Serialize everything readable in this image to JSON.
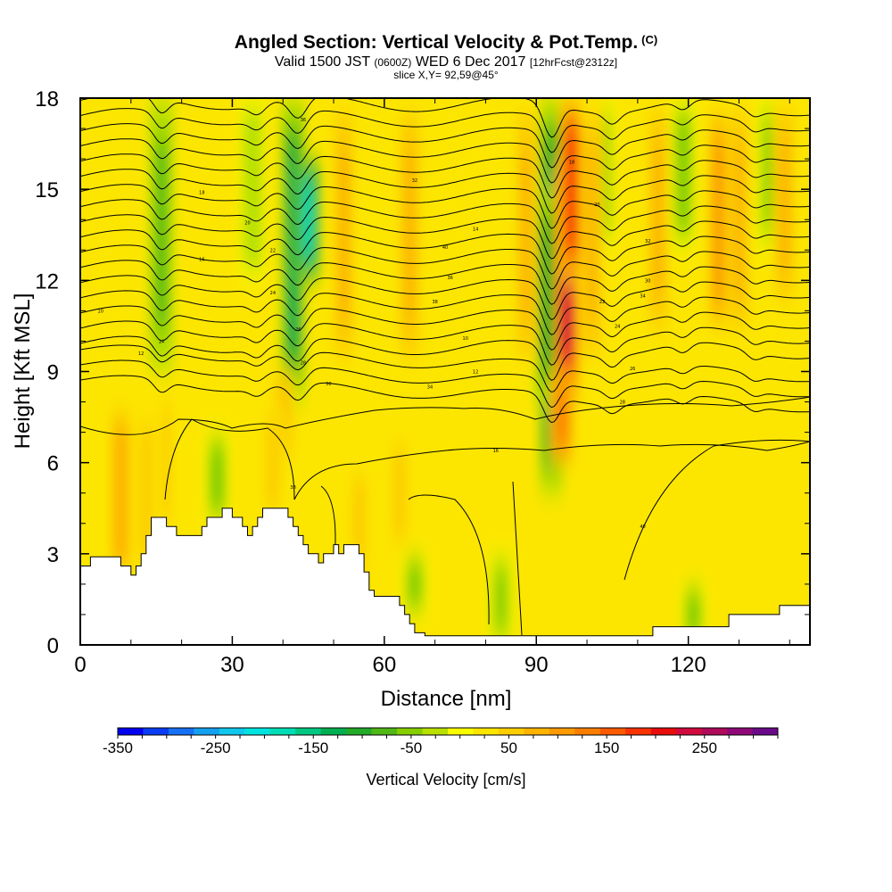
{
  "header": {
    "title": "Angled Section: Vertical Velocity & Pot.Temp.",
    "title_unit": "(C)",
    "valid_prefix": "Valid 1500 JST",
    "valid_utc": "(0600Z)",
    "valid_date": "WED 6 Dec 2017",
    "forecast": "[12hrFcst@2312z]",
    "slice": "slice X,Y= 92,59@45°"
  },
  "chart_data": {
    "type": "heatmap",
    "xlabel": "Distance [nm]",
    "ylabel": "Height [Kft MSL]",
    "xlim": [
      0,
      144
    ],
    "ylim": [
      0,
      18
    ],
    "x_ticks": [
      "0",
      "30",
      "60",
      "90",
      "120"
    ],
    "x_tick_values": [
      0,
      30,
      60,
      90,
      120
    ],
    "y_ticks": [
      "0",
      "3",
      "6",
      "9",
      "12",
      "15",
      "18"
    ],
    "y_tick_values": [
      0,
      3,
      6,
      9,
      12,
      15,
      18
    ],
    "colorbar": {
      "label": "Vertical Velocity [cm/s]",
      "tick_labels": [
        "-350",
        "-250",
        "-150",
        "-50",
        "50",
        "150",
        "250"
      ],
      "tick_values": [
        -350,
        -250,
        -150,
        -50,
        50,
        150,
        250
      ],
      "range": [
        -350,
        325
      ],
      "step": 25,
      "colors": [
        "#0000f0",
        "#0a3cf5",
        "#1670f5",
        "#14a0f0",
        "#10c8ee",
        "#00e4e0",
        "#00dcb4",
        "#00c882",
        "#00b050",
        "#22aa28",
        "#50b814",
        "#86ce00",
        "#b8e000",
        "#fcfc00",
        "#fce600",
        "#fcce00",
        "#fcb400",
        "#fc9a00",
        "#fc7e00",
        "#fc5a00",
        "#f83200",
        "#e80c0c",
        "#d00a3c",
        "#b00a5a",
        "#900878",
        "#6a0a8a"
      ]
    },
    "terrain_kft": [
      [
        0,
        2.6
      ],
      [
        2,
        2.6
      ],
      [
        2,
        2.9
      ],
      [
        8,
        2.9
      ],
      [
        8,
        2.6
      ],
      [
        10,
        2.6
      ],
      [
        10,
        2.3
      ],
      [
        11,
        2.3
      ],
      [
        11,
        2.6
      ],
      [
        12,
        2.6
      ],
      [
        12,
        3.0
      ],
      [
        13,
        3.0
      ],
      [
        13,
        3.6
      ],
      [
        14,
        3.6
      ],
      [
        14,
        4.2
      ],
      [
        17,
        4.2
      ],
      [
        17,
        3.9
      ],
      [
        19,
        3.9
      ],
      [
        19,
        3.6
      ],
      [
        24,
        3.6
      ],
      [
        24,
        3.9
      ],
      [
        25,
        3.9
      ],
      [
        25,
        4.2
      ],
      [
        28,
        4.2
      ],
      [
        28,
        4.5
      ],
      [
        30,
        4.5
      ],
      [
        30,
        4.2
      ],
      [
        32,
        4.2
      ],
      [
        32,
        3.9
      ],
      [
        33,
        3.9
      ],
      [
        33,
        3.6
      ],
      [
        34,
        3.6
      ],
      [
        34,
        3.9
      ],
      [
        35,
        3.9
      ],
      [
        35,
        4.2
      ],
      [
        36,
        4.2
      ],
      [
        36,
        4.5
      ],
      [
        41,
        4.5
      ],
      [
        41,
        4.2
      ],
      [
        42,
        4.2
      ],
      [
        42,
        3.9
      ],
      [
        43,
        3.9
      ],
      [
        43,
        3.6
      ],
      [
        44,
        3.6
      ],
      [
        44,
        3.3
      ],
      [
        45,
        3.3
      ],
      [
        45,
        3.0
      ],
      [
        47,
        3.0
      ],
      [
        47,
        2.7
      ],
      [
        48,
        2.7
      ],
      [
        48,
        3.0
      ],
      [
        50,
        3.0
      ],
      [
        50,
        3.3
      ],
      [
        51,
        3.3
      ],
      [
        51,
        3.0
      ],
      [
        52,
        3.0
      ],
      [
        52,
        3.3
      ],
      [
        55,
        3.3
      ],
      [
        55,
        3.0
      ],
      [
        56,
        3.0
      ],
      [
        56,
        2.4
      ],
      [
        57,
        2.4
      ],
      [
        57,
        1.8
      ],
      [
        58,
        1.8
      ],
      [
        58,
        1.6
      ],
      [
        63,
        1.6
      ],
      [
        63,
        1.3
      ],
      [
        64,
        1.3
      ],
      [
        64,
        1.0
      ],
      [
        65,
        1.0
      ],
      [
        65,
        0.7
      ],
      [
        66,
        0.7
      ],
      [
        66,
        0.4
      ],
      [
        68,
        0.4
      ],
      [
        68,
        0.3
      ],
      [
        113,
        0.3
      ],
      [
        113,
        0.6
      ],
      [
        128,
        0.6
      ],
      [
        128,
        1.0
      ],
      [
        138,
        1.0
      ],
      [
        138,
        1.3
      ],
      [
        144,
        1.3
      ]
    ],
    "updrafts": [
      {
        "x": 8,
        "z0": 2,
        "z1": 8,
        "w": 70
      },
      {
        "x": 13,
        "z0": 2,
        "z1": 8,
        "w": 40
      },
      {
        "x": 17,
        "z0": 3,
        "z1": 9,
        "w": 30
      },
      {
        "x": 40,
        "z0": 6,
        "z1": 9,
        "w": 60
      },
      {
        "x": 38,
        "z0": 4,
        "z1": 8,
        "w": 45
      },
      {
        "x": 55,
        "z0": 2,
        "z1": 6,
        "w": 45
      },
      {
        "x": 63,
        "z0": 3,
        "z1": 7,
        "w": 40
      },
      {
        "x": 96,
        "z0": 8,
        "z1": 16,
        "w": 200
      },
      {
        "x": 97,
        "z0": 12,
        "z1": 18,
        "w": 160
      },
      {
        "x": 95,
        "z0": 6,
        "z1": 9,
        "w": 110
      },
      {
        "x": 52,
        "z0": 9,
        "z1": 18,
        "w": 60
      },
      {
        "x": 65,
        "z0": 9,
        "z1": 18,
        "w": 55
      },
      {
        "x": 88,
        "z0": 9,
        "z1": 18,
        "w": 50
      },
      {
        "x": 101,
        "z0": 9,
        "z1": 18,
        "w": 50
      },
      {
        "x": 114,
        "z0": 10,
        "z1": 18,
        "w": 55
      },
      {
        "x": 126,
        "z0": 10,
        "z1": 18,
        "w": 75
      },
      {
        "x": 130,
        "z0": 10,
        "z1": 18,
        "w": 50
      },
      {
        "x": 139,
        "z0": 11,
        "z1": 18,
        "w": 60
      }
    ],
    "downdrafts": [
      {
        "x": 16,
        "z0": 9,
        "z1": 18,
        "w": -90
      },
      {
        "x": 42,
        "z0": 8,
        "z1": 18,
        "w": -130
      },
      {
        "x": 45,
        "z0": 12,
        "z1": 16,
        "w": -180
      },
      {
        "x": 93,
        "z0": 5,
        "z1": 18,
        "w": -150
      },
      {
        "x": 92,
        "z0": 8,
        "z1": 15,
        "w": -110
      },
      {
        "x": 27,
        "z0": 4,
        "z1": 7,
        "w": -70
      },
      {
        "x": 103,
        "z0": 13,
        "z1": 18,
        "w": -70
      },
      {
        "x": 119,
        "z0": 13,
        "z1": 18,
        "w": -75
      },
      {
        "x": 136,
        "z0": 13,
        "z1": 18,
        "w": -60
      },
      {
        "x": 34,
        "z0": 12,
        "z1": 18,
        "w": -50
      },
      {
        "x": 66,
        "z0": 1,
        "z1": 3,
        "w": -70
      },
      {
        "x": 83,
        "z0": 0,
        "z1": 3,
        "w": -60
      },
      {
        "x": 121,
        "z0": 0,
        "z1": 2,
        "w": -65
      }
    ],
    "isentrope_labels": [
      "10",
      "12",
      "14",
      "16",
      "18",
      "20",
      "22",
      "24",
      "26",
      "28",
      "30",
      "32",
      "34",
      "36",
      "38",
      "40"
    ]
  }
}
